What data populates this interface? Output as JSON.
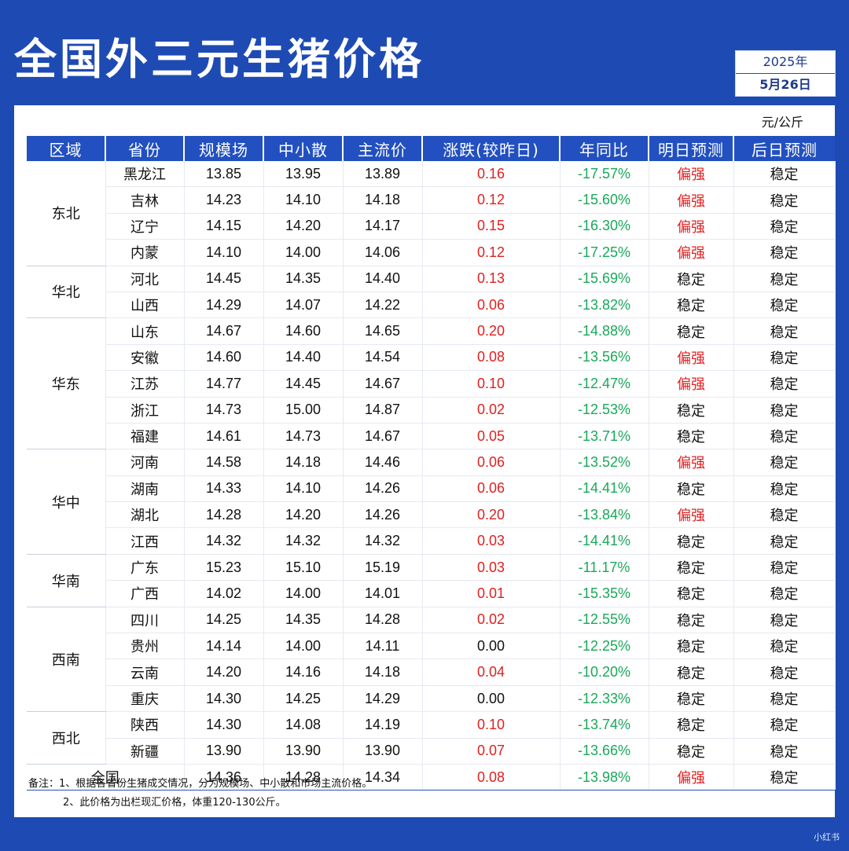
{
  "title": "全国外三元生猪价格",
  "date": {
    "year": "2025年",
    "day": "5月26日"
  },
  "unit": "元/公斤",
  "headers": [
    "区域",
    "省份",
    "规模场",
    "中小散",
    "主流价",
    "涨跌(较昨日)",
    "年同比",
    "明日预测",
    "后日预测"
  ],
  "groups": [
    {
      "region": "东北",
      "rows": [
        [
          "黑龙江",
          "13.85",
          "13.95",
          "13.89",
          "0.16",
          "-17.57%",
          "偏强",
          "稳定"
        ],
        [
          "吉林",
          "14.23",
          "14.10",
          "14.18",
          "0.12",
          "-15.60%",
          "偏强",
          "稳定"
        ],
        [
          "辽宁",
          "14.15",
          "14.20",
          "14.17",
          "0.15",
          "-16.30%",
          "偏强",
          "稳定"
        ],
        [
          "内蒙",
          "14.10",
          "14.00",
          "14.06",
          "0.12",
          "-17.25%",
          "偏强",
          "稳定"
        ]
      ]
    },
    {
      "region": "华北",
      "rows": [
        [
          "河北",
          "14.45",
          "14.35",
          "14.40",
          "0.13",
          "-15.69%",
          "稳定",
          "稳定"
        ],
        [
          "山西",
          "14.29",
          "14.07",
          "14.22",
          "0.06",
          "-13.82%",
          "稳定",
          "稳定"
        ]
      ]
    },
    {
      "region": "华东",
      "rows": [
        [
          "山东",
          "14.67",
          "14.60",
          "14.65",
          "0.20",
          "-14.88%",
          "稳定",
          "稳定"
        ],
        [
          "安徽",
          "14.60",
          "14.40",
          "14.54",
          "0.08",
          "-13.56%",
          "偏强",
          "稳定"
        ],
        [
          "江苏",
          "14.77",
          "14.45",
          "14.67",
          "0.10",
          "-12.47%",
          "偏强",
          "稳定"
        ],
        [
          "浙江",
          "14.73",
          "15.00",
          "14.87",
          "0.02",
          "-12.53%",
          "稳定",
          "稳定"
        ],
        [
          "福建",
          "14.61",
          "14.73",
          "14.67",
          "0.05",
          "-13.71%",
          "稳定",
          "稳定"
        ]
      ]
    },
    {
      "region": "华中",
      "rows": [
        [
          "河南",
          "14.58",
          "14.18",
          "14.46",
          "0.06",
          "-13.52%",
          "偏强",
          "稳定"
        ],
        [
          "湖南",
          "14.33",
          "14.10",
          "14.26",
          "0.06",
          "-14.41%",
          "稳定",
          "稳定"
        ],
        [
          "湖北",
          "14.28",
          "14.20",
          "14.26",
          "0.20",
          "-13.84%",
          "偏强",
          "稳定"
        ],
        [
          "江西",
          "14.32",
          "14.32",
          "14.32",
          "0.03",
          "-14.41%",
          "稳定",
          "稳定"
        ]
      ]
    },
    {
      "region": "华南",
      "rows": [
        [
          "广东",
          "15.23",
          "15.10",
          "15.19",
          "0.03",
          "-11.17%",
          "稳定",
          "稳定"
        ],
        [
          "广西",
          "14.02",
          "14.00",
          "14.01",
          "0.01",
          "-15.35%",
          "稳定",
          "稳定"
        ]
      ]
    },
    {
      "region": "西南",
      "rows": [
        [
          "四川",
          "14.25",
          "14.35",
          "14.28",
          "0.02",
          "-12.55%",
          "稳定",
          "稳定"
        ],
        [
          "贵州",
          "14.14",
          "14.00",
          "14.11",
          "0.00",
          "-12.25%",
          "稳定",
          "稳定"
        ],
        [
          "云南",
          "14.20",
          "14.16",
          "14.18",
          "0.04",
          "-10.20%",
          "稳定",
          "稳定"
        ],
        [
          "重庆",
          "14.30",
          "14.25",
          "14.29",
          "0.00",
          "-12.33%",
          "稳定",
          "稳定"
        ]
      ]
    },
    {
      "region": "西北",
      "rows": [
        [
          "陕西",
          "14.30",
          "14.08",
          "14.19",
          "0.10",
          "-13.74%",
          "稳定",
          "稳定"
        ],
        [
          "新疆",
          "13.90",
          "13.90",
          "13.90",
          "0.07",
          "-13.66%",
          "稳定",
          "稳定"
        ]
      ]
    }
  ],
  "national": [
    "全国",
    "14.36",
    "14.28",
    "14.34",
    "0.08",
    "-13.98%",
    "偏强",
    "稳定"
  ],
  "notes": [
    "备注：1、根据各省份生猪成交情况，分为规模场、中小散和市场主流价格。",
    "2、此价格为出栏现汇价格，体重120-130公斤。"
  ],
  "watermark": "小红书",
  "colors": {
    "background": "#1e4bb3",
    "header": "#2250c0",
    "up": "#e02020",
    "yoy": "#19a85a",
    "strong": "#e02020"
  }
}
